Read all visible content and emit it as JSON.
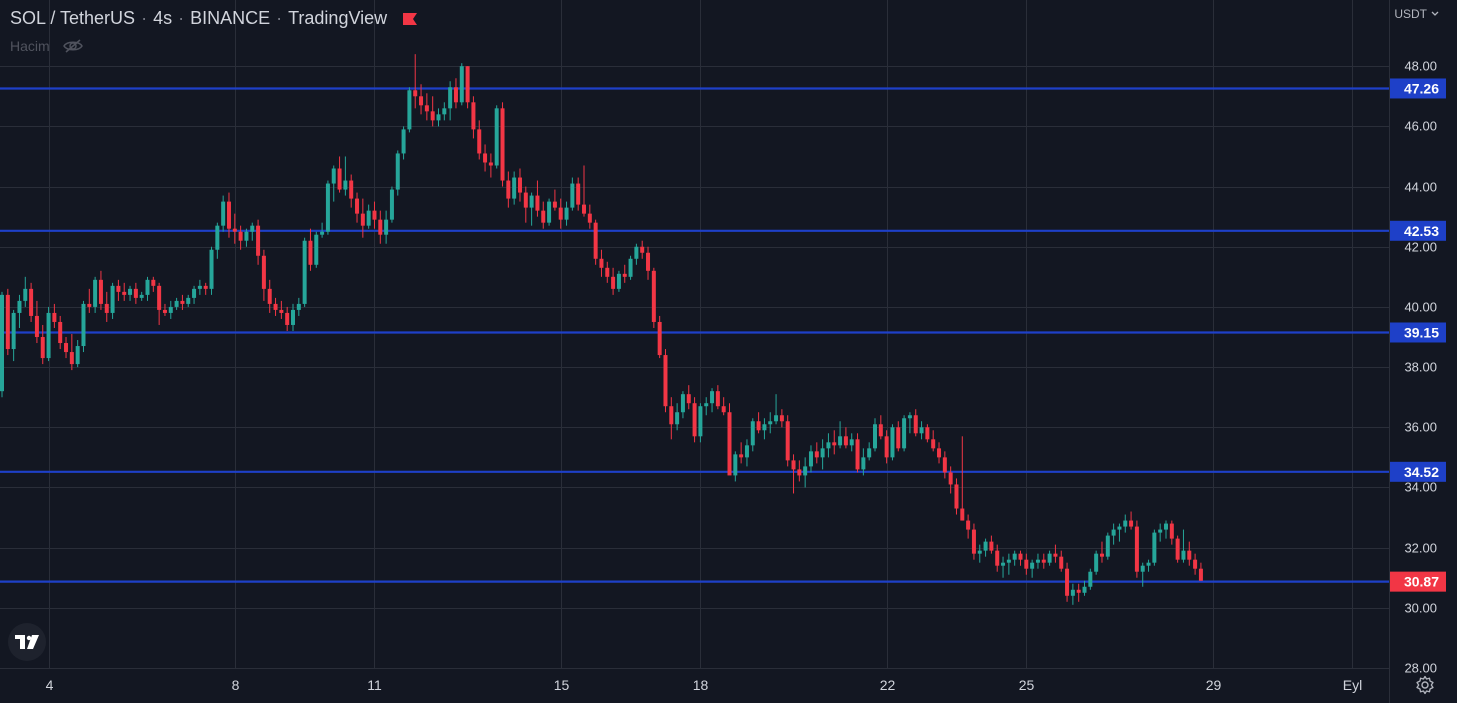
{
  "header": {
    "symbol": "SOL / TetherUS",
    "interval": "4s",
    "exchange": "BINANCE",
    "source": "TradingView",
    "sep": "·",
    "accent": "#f23645"
  },
  "volume_label": "Hacim",
  "currency_label": "USDT",
  "colors": {
    "background": "#131722",
    "grid": "#2a2e39",
    "up": "#26a69a",
    "down": "#f23645",
    "level": "#1e40c8",
    "axis_text": "#d1d4dc"
  },
  "chart_data": {
    "type": "candlestick",
    "ylim": [
      28,
      50.2
    ],
    "y_ticks": [
      {
        "value": 30,
        "label": "30.00"
      },
      {
        "value": 32,
        "label": "32.00"
      },
      {
        "value": 34,
        "label": "34.00"
      },
      {
        "value": 36,
        "label": "36.00"
      },
      {
        "value": 38,
        "label": "38.00"
      },
      {
        "value": 40,
        "label": "40.00"
      },
      {
        "value": 42,
        "label": "42.00"
      },
      {
        "value": 44,
        "label": "44.00"
      },
      {
        "value": 46,
        "label": "46.00"
      },
      {
        "value": 48,
        "label": "48.00"
      },
      {
        "value": 28,
        "label": "28.00"
      }
    ],
    "x_ticks": [
      {
        "index": 8,
        "label": "4"
      },
      {
        "index": 40,
        "label": "8"
      },
      {
        "index": 64,
        "label": "11"
      },
      {
        "index": 96,
        "label": "15"
      },
      {
        "index": 120,
        "label": "18"
      },
      {
        "index": 152,
        "label": "22"
      },
      {
        "index": 176,
        "label": "25"
      },
      {
        "index": 208,
        "label": "29"
      },
      {
        "index": 232,
        "label": "Eyl"
      }
    ],
    "levels": [
      {
        "value": 47.26,
        "label": "47.26"
      },
      {
        "value": 42.53,
        "label": "42.53"
      },
      {
        "value": 39.15,
        "label": "39.15"
      },
      {
        "value": 34.52,
        "label": "34.52"
      },
      {
        "value": 30.87,
        "label": "30.87",
        "current": true
      }
    ],
    "candles": [
      [
        37.2,
        40.5,
        37.0,
        40.4
      ],
      [
        40.4,
        40.6,
        38.4,
        38.6
      ],
      [
        38.6,
        39.9,
        38.2,
        39.8
      ],
      [
        39.8,
        40.4,
        39.3,
        40.2
      ],
      [
        40.2,
        41.0,
        40.0,
        40.6
      ],
      [
        40.6,
        40.8,
        39.5,
        39.7
      ],
      [
        39.7,
        40.2,
        38.8,
        39.0
      ],
      [
        39.0,
        39.4,
        38.1,
        38.3
      ],
      [
        38.3,
        40.0,
        38.2,
        39.8
      ],
      [
        39.8,
        40.1,
        39.3,
        39.5
      ],
      [
        39.5,
        39.7,
        38.6,
        38.8
      ],
      [
        38.8,
        39.0,
        38.3,
        38.5
      ],
      [
        38.5,
        39.1,
        37.9,
        38.1
      ],
      [
        38.1,
        38.9,
        38.0,
        38.7
      ],
      [
        38.7,
        40.2,
        38.5,
        40.1
      ],
      [
        40.1,
        40.6,
        39.8,
        40.0
      ],
      [
        40.0,
        41.0,
        39.8,
        40.9
      ],
      [
        40.9,
        41.2,
        39.9,
        40.1
      ],
      [
        40.1,
        40.5,
        39.5,
        39.8
      ],
      [
        39.8,
        40.8,
        39.6,
        40.7
      ],
      [
        40.7,
        40.9,
        40.2,
        40.5
      ],
      [
        40.5,
        40.8,
        40.2,
        40.4
      ],
      [
        40.4,
        40.7,
        40.2,
        40.6
      ],
      [
        40.6,
        40.8,
        40.1,
        40.3
      ],
      [
        40.3,
        40.5,
        40.2,
        40.4
      ],
      [
        40.4,
        41.0,
        40.2,
        40.9
      ],
      [
        40.9,
        41.0,
        40.5,
        40.7
      ],
      [
        40.7,
        40.8,
        39.4,
        39.9
      ],
      [
        39.9,
        40.1,
        39.7,
        39.8
      ],
      [
        39.8,
        40.2,
        39.6,
        40.0
      ],
      [
        40.0,
        40.3,
        39.9,
        40.2
      ],
      [
        40.2,
        40.4,
        39.9,
        40.1
      ],
      [
        40.1,
        40.4,
        40.0,
        40.3
      ],
      [
        40.3,
        40.7,
        40.1,
        40.6
      ],
      [
        40.6,
        40.9,
        40.4,
        40.7
      ],
      [
        40.7,
        40.8,
        40.4,
        40.6
      ],
      [
        40.6,
        42.0,
        40.4,
        41.9
      ],
      [
        41.9,
        42.8,
        41.6,
        42.7
      ],
      [
        42.7,
        43.7,
        42.5,
        43.5
      ],
      [
        43.5,
        43.8,
        42.3,
        42.6
      ],
      [
        42.6,
        43.1,
        42.1,
        42.5
      ],
      [
        42.5,
        42.7,
        41.9,
        42.2
      ],
      [
        42.2,
        42.6,
        42.0,
        42.5
      ],
      [
        42.5,
        42.8,
        42.2,
        42.7
      ],
      [
        42.7,
        42.9,
        41.4,
        41.7
      ],
      [
        41.7,
        41.9,
        40.2,
        40.6
      ],
      [
        40.6,
        40.9,
        39.8,
        40.1
      ],
      [
        40.1,
        40.3,
        39.7,
        39.9
      ],
      [
        39.9,
        40.2,
        39.6,
        39.8
      ],
      [
        39.8,
        40.0,
        39.2,
        39.4
      ],
      [
        39.4,
        40.1,
        39.2,
        39.9
      ],
      [
        39.9,
        40.3,
        39.7,
        40.1
      ],
      [
        40.1,
        42.3,
        40.0,
        42.2
      ],
      [
        42.2,
        42.6,
        41.2,
        41.4
      ],
      [
        41.4,
        42.5,
        41.3,
        42.4
      ],
      [
        42.4,
        42.8,
        42.3,
        42.5
      ],
      [
        42.5,
        44.2,
        42.4,
        44.1
      ],
      [
        44.1,
        44.7,
        43.5,
        44.6
      ],
      [
        44.6,
        45.0,
        43.8,
        43.9
      ],
      [
        43.9,
        45.0,
        43.7,
        44.2
      ],
      [
        44.2,
        44.4,
        43.3,
        43.6
      ],
      [
        43.6,
        43.8,
        42.8,
        43.1
      ],
      [
        43.1,
        43.6,
        42.3,
        42.7
      ],
      [
        42.7,
        43.4,
        42.6,
        43.2
      ],
      [
        43.2,
        43.5,
        42.6,
        42.9
      ],
      [
        42.9,
        43.2,
        42.1,
        42.4
      ],
      [
        42.4,
        43.2,
        42.1,
        42.9
      ],
      [
        42.9,
        44.0,
        42.8,
        43.9
      ],
      [
        43.9,
        45.2,
        43.7,
        45.1
      ],
      [
        45.1,
        46.0,
        44.9,
        45.9
      ],
      [
        45.9,
        47.3,
        45.8,
        47.2
      ],
      [
        47.2,
        48.4,
        46.6,
        47.0
      ],
      [
        47.0,
        47.4,
        46.4,
        46.7
      ],
      [
        46.7,
        47.1,
        46.2,
        46.5
      ],
      [
        46.5,
        47.0,
        46.0,
        46.2
      ],
      [
        46.2,
        46.6,
        46.0,
        46.4
      ],
      [
        46.4,
        46.8,
        46.2,
        46.6
      ],
      [
        46.6,
        47.5,
        46.2,
        47.3
      ],
      [
        47.3,
        47.6,
        46.6,
        46.8
      ],
      [
        46.8,
        48.1,
        46.7,
        48.0
      ],
      [
        48.0,
        48.0,
        46.6,
        46.8
      ],
      [
        46.8,
        47.0,
        45.6,
        45.9
      ],
      [
        45.9,
        46.2,
        44.9,
        45.1
      ],
      [
        45.1,
        45.4,
        44.5,
        44.8
      ],
      [
        44.8,
        45.1,
        44.3,
        44.7
      ],
      [
        44.7,
        46.7,
        44.6,
        46.6
      ],
      [
        46.6,
        46.8,
        44.0,
        44.2
      ],
      [
        44.2,
        44.5,
        43.3,
        43.6
      ],
      [
        43.6,
        44.5,
        43.4,
        44.3
      ],
      [
        44.3,
        44.6,
        43.5,
        43.8
      ],
      [
        43.8,
        44.0,
        42.8,
        43.3
      ],
      [
        43.3,
        43.8,
        42.7,
        43.7
      ],
      [
        43.7,
        44.2,
        43.0,
        43.2
      ],
      [
        43.2,
        43.5,
        42.6,
        42.8
      ],
      [
        42.8,
        43.6,
        42.7,
        43.5
      ],
      [
        43.5,
        43.9,
        43.2,
        43.3
      ],
      [
        43.3,
        43.6,
        42.6,
        42.9
      ],
      [
        42.9,
        43.5,
        42.7,
        43.3
      ],
      [
        43.3,
        44.3,
        43.2,
        44.1
      ],
      [
        44.1,
        44.3,
        43.2,
        43.4
      ],
      [
        43.4,
        44.7,
        43.0,
        43.1
      ],
      [
        43.1,
        43.4,
        42.6,
        42.8
      ],
      [
        42.8,
        42.9,
        41.4,
        41.6
      ],
      [
        41.6,
        41.9,
        41.0,
        41.3
      ],
      [
        41.3,
        41.5,
        40.8,
        41.0
      ],
      [
        41.0,
        41.3,
        40.4,
        40.6
      ],
      [
        40.6,
        41.2,
        40.5,
        41.1
      ],
      [
        41.1,
        41.4,
        40.8,
        41.0
      ],
      [
        41.0,
        41.7,
        40.9,
        41.6
      ],
      [
        41.6,
        42.1,
        41.4,
        42.0
      ],
      [
        42.0,
        42.2,
        41.6,
        41.8
      ],
      [
        41.8,
        42.0,
        40.9,
        41.2
      ],
      [
        41.2,
        41.3,
        39.3,
        39.5
      ],
      [
        39.5,
        39.7,
        38.3,
        38.4
      ],
      [
        38.4,
        38.6,
        36.5,
        36.7
      ],
      [
        36.7,
        37.0,
        35.6,
        36.1
      ],
      [
        36.1,
        36.8,
        35.9,
        36.5
      ],
      [
        36.5,
        37.2,
        36.3,
        37.1
      ],
      [
        37.1,
        37.4,
        36.6,
        36.8
      ],
      [
        36.8,
        37.0,
        35.5,
        35.7
      ],
      [
        35.7,
        36.8,
        35.5,
        36.7
      ],
      [
        36.7,
        37.0,
        36.4,
        36.8
      ],
      [
        36.8,
        37.3,
        36.5,
        37.2
      ],
      [
        37.2,
        37.4,
        36.6,
        36.7
      ],
      [
        36.7,
        37.0,
        36.4,
        36.5
      ],
      [
        36.5,
        36.8,
        34.6,
        34.4
      ],
      [
        34.4,
        35.2,
        34.2,
        35.1
      ],
      [
        35.1,
        35.5,
        34.8,
        35.0
      ],
      [
        35.0,
        35.6,
        34.7,
        35.4
      ],
      [
        35.4,
        36.3,
        35.2,
        36.2
      ],
      [
        36.2,
        36.5,
        35.8,
        35.9
      ],
      [
        35.9,
        36.3,
        35.6,
        36.1
      ],
      [
        36.1,
        36.5,
        35.8,
        36.2
      ],
      [
        36.2,
        37.1,
        36.1,
        36.4
      ],
      [
        36.4,
        36.6,
        36.0,
        36.2
      ],
      [
        36.2,
        36.4,
        34.7,
        34.9
      ],
      [
        34.9,
        35.1,
        33.8,
        34.6
      ],
      [
        34.6,
        34.9,
        34.2,
        34.4
      ],
      [
        34.4,
        35.0,
        34.0,
        34.7
      ],
      [
        34.7,
        35.4,
        34.5,
        35.2
      ],
      [
        35.2,
        35.5,
        34.8,
        35.0
      ],
      [
        35.0,
        35.6,
        34.6,
        35.3
      ],
      [
        35.3,
        35.8,
        35.0,
        35.5
      ],
      [
        35.5,
        35.9,
        35.1,
        35.4
      ],
      [
        35.4,
        36.2,
        35.3,
        35.7
      ],
      [
        35.7,
        36.0,
        35.3,
        35.4
      ],
      [
        35.4,
        35.8,
        35.2,
        35.6
      ],
      [
        35.6,
        35.8,
        34.5,
        34.6
      ],
      [
        34.6,
        35.3,
        34.4,
        35.0
      ],
      [
        35.0,
        35.5,
        34.9,
        35.3
      ],
      [
        35.3,
        36.3,
        35.2,
        36.1
      ],
      [
        36.1,
        36.4,
        35.6,
        35.7
      ],
      [
        35.7,
        35.9,
        34.8,
        35.0
      ],
      [
        35.0,
        36.1,
        34.9,
        36.0
      ],
      [
        36.0,
        36.2,
        35.2,
        35.3
      ],
      [
        35.3,
        36.4,
        35.2,
        36.3
      ],
      [
        36.3,
        36.5,
        35.8,
        36.4
      ],
      [
        36.4,
        36.6,
        35.7,
        35.8
      ],
      [
        35.8,
        36.2,
        35.6,
        36.0
      ],
      [
        36.0,
        36.1,
        35.5,
        35.6
      ],
      [
        35.6,
        35.9,
        35.2,
        35.3
      ],
      [
        35.3,
        35.5,
        34.8,
        35.0
      ],
      [
        35.0,
        35.2,
        34.3,
        34.5
      ],
      [
        34.5,
        34.7,
        33.8,
        34.1
      ],
      [
        34.1,
        34.3,
        33.1,
        33.3
      ],
      [
        33.3,
        35.7,
        32.9,
        32.9
      ],
      [
        32.9,
        33.1,
        32.3,
        32.6
      ],
      [
        32.6,
        32.8,
        31.6,
        31.8
      ],
      [
        31.8,
        32.1,
        31.5,
        31.9
      ],
      [
        31.9,
        32.3,
        31.7,
        32.2
      ],
      [
        32.2,
        32.4,
        31.8,
        31.9
      ],
      [
        31.9,
        32.1,
        31.2,
        31.4
      ],
      [
        31.4,
        31.7,
        31.0,
        31.5
      ],
      [
        31.5,
        31.8,
        31.1,
        31.6
      ],
      [
        31.6,
        31.9,
        31.4,
        31.8
      ],
      [
        31.8,
        31.9,
        31.4,
        31.6
      ],
      [
        31.6,
        31.8,
        31.1,
        31.3
      ],
      [
        31.3,
        31.6,
        31.0,
        31.5
      ],
      [
        31.5,
        31.8,
        31.3,
        31.6
      ],
      [
        31.6,
        31.8,
        31.3,
        31.5
      ],
      [
        31.5,
        31.9,
        31.4,
        31.8
      ],
      [
        31.8,
        32.1,
        31.5,
        31.7
      ],
      [
        31.7,
        31.9,
        31.2,
        31.3
      ],
      [
        31.3,
        31.5,
        30.2,
        30.4
      ],
      [
        30.4,
        30.8,
        30.1,
        30.6
      ],
      [
        30.6,
        30.8,
        30.2,
        30.5
      ],
      [
        30.5,
        30.9,
        30.4,
        30.7
      ],
      [
        30.7,
        31.3,
        30.6,
        31.2
      ],
      [
        31.2,
        31.9,
        31.1,
        31.8
      ],
      [
        31.8,
        32.2,
        31.5,
        31.7
      ],
      [
        31.7,
        32.5,
        31.6,
        32.4
      ],
      [
        32.4,
        32.8,
        32.1,
        32.6
      ],
      [
        32.6,
        32.8,
        32.2,
        32.7
      ],
      [
        32.7,
        33.1,
        32.5,
        32.9
      ],
      [
        32.9,
        33.2,
        32.6,
        32.7
      ],
      [
        32.7,
        32.9,
        31.0,
        31.2
      ],
      [
        31.2,
        31.5,
        30.7,
        31.4
      ],
      [
        31.4,
        31.6,
        31.2,
        31.5
      ],
      [
        31.5,
        32.6,
        31.4,
        32.5
      ],
      [
        32.5,
        32.8,
        32.2,
        32.6
      ],
      [
        32.6,
        32.9,
        32.3,
        32.8
      ],
      [
        32.8,
        32.9,
        32.1,
        32.3
      ],
      [
        32.3,
        32.4,
        31.5,
        31.6
      ],
      [
        31.6,
        32.6,
        31.5,
        31.9
      ],
      [
        31.9,
        32.2,
        31.4,
        31.6
      ],
      [
        31.6,
        31.8,
        31.1,
        31.3
      ],
      [
        31.3,
        31.5,
        30.9,
        30.9
      ]
    ]
  }
}
